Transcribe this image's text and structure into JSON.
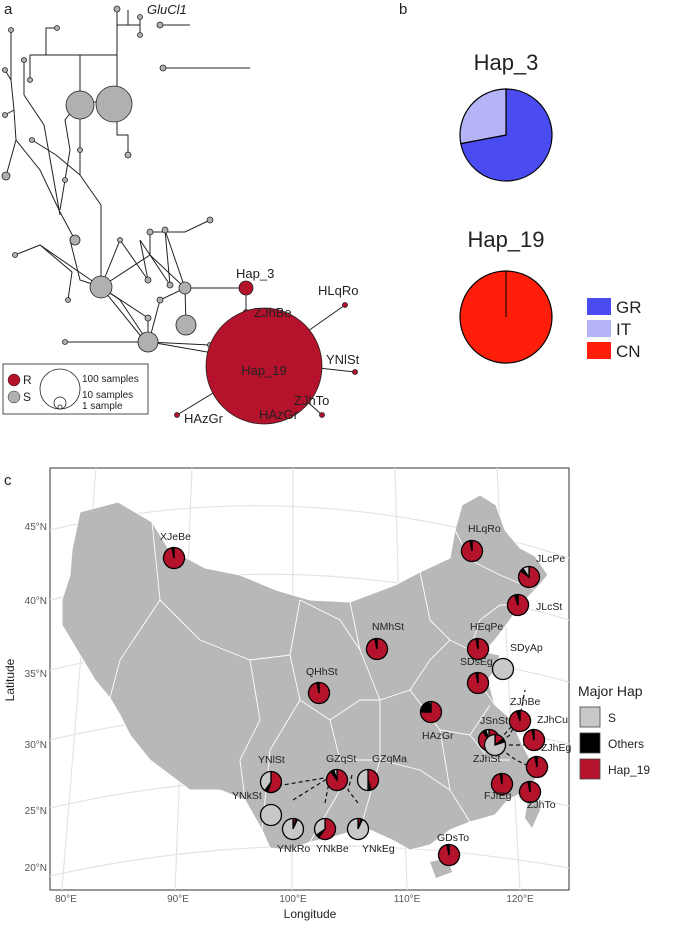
{
  "panels": {
    "a": "a",
    "b": "b",
    "c": "c"
  },
  "network": {
    "gene": "GluCl1",
    "haplotype_labels": [
      "Hap_3",
      "ZJhBe",
      "HLqRo",
      "Hap_19",
      "YNlSt",
      "ZJhTo",
      "HAzGr",
      "HAzGr"
    ],
    "legend": {
      "resistant": "R",
      "susceptible": "S",
      "sizes": [
        "100 samples",
        "10 samples",
        "1 sample"
      ]
    },
    "colors": {
      "R": "#b5122b",
      "S": "#b0b0b0"
    }
  },
  "chart_data": [
    {
      "type": "pie",
      "title": "Hap_3",
      "categories": [
        "GR",
        "IT",
        "CN"
      ],
      "values": [
        0.72,
        0.28,
        0.0
      ],
      "colors": [
        "#4b4bf2",
        "#b4b4f7",
        "#ff1e0a"
      ]
    },
    {
      "type": "pie",
      "title": "Hap_19",
      "categories": [
        "GR",
        "IT",
        "CN"
      ],
      "values": [
        0.0,
        0.0,
        1.0
      ],
      "colors": [
        "#4b4bf2",
        "#b4b4f7",
        "#ff1e0a"
      ]
    },
    {
      "type": "map-pies",
      "xlabel": "Longitude",
      "ylabel": "Latitude",
      "x_ticks": [
        "80°E",
        "90°E",
        "100°E",
        "110°E",
        "120°E"
      ],
      "y_ticks": [
        "20°N",
        "25°N",
        "30°N",
        "35°N",
        "40°N",
        "45°N"
      ],
      "legend": {
        "title": "Major Hap",
        "entries": [
          "S",
          "Others",
          "Hap_19"
        ],
        "colors": [
          "#c8c8c8",
          "#000000",
          "#b5122b"
        ]
      },
      "sites": [
        {
          "name": "XJeBe",
          "hap19": 0.97,
          "others": 0.03,
          "s": 0.0
        },
        {
          "name": "HLqRo",
          "hap19": 0.97,
          "others": 0.03,
          "s": 0.0
        },
        {
          "name": "JLcPe",
          "hap19": 0.85,
          "others": 0.05,
          "s": 0.1
        },
        {
          "name": "JLcSt",
          "hap19": 0.95,
          "others": 0.05,
          "s": 0.0
        },
        {
          "name": "NMhSt",
          "hap19": 0.97,
          "others": 0.03,
          "s": 0.0
        },
        {
          "name": "HEqPe",
          "hap19": 0.97,
          "others": 0.03,
          "s": 0.0
        },
        {
          "name": "SDyAp",
          "hap19": 0.0,
          "others": 0.0,
          "s": 1.0
        },
        {
          "name": "SDsEg",
          "hap19": 0.97,
          "others": 0.03,
          "s": 0.0
        },
        {
          "name": "QHhSt",
          "hap19": 0.97,
          "others": 0.03,
          "s": 0.0
        },
        {
          "name": "HAzGr",
          "hap19": 0.75,
          "others": 0.22,
          "s": 0.03
        },
        {
          "name": "ZJhBe",
          "hap19": 0.95,
          "others": 0.05,
          "s": 0.0
        },
        {
          "name": "JSnSt",
          "hap19": 0.9,
          "others": 0.05,
          "s": 0.05
        },
        {
          "name": "ZJhCu",
          "hap19": 0.97,
          "others": 0.03,
          "s": 0.0
        },
        {
          "name": "ZJhSt",
          "hap19": 0.15,
          "others": 0.05,
          "s": 0.8
        },
        {
          "name": "ZJhEg",
          "hap19": 0.97,
          "others": 0.03,
          "s": 0.0
        },
        {
          "name": "YNlSt",
          "hap19": 0.55,
          "others": 0.05,
          "s": 0.4
        },
        {
          "name": "GZqSt",
          "hap19": 0.9,
          "others": 0.05,
          "s": 0.05
        },
        {
          "name": "GZqMa",
          "hap19": 0.45,
          "others": 0.05,
          "s": 0.5
        },
        {
          "name": "FJfEg",
          "hap19": 0.97,
          "others": 0.03,
          "s": 0.0
        },
        {
          "name": "ZJhTo",
          "hap19": 0.97,
          "others": 0.03,
          "s": 0.0
        },
        {
          "name": "YNkSt",
          "hap19": 0.0,
          "others": 0.0,
          "s": 1.0
        },
        {
          "name": "YNkRo",
          "hap19": 0.05,
          "others": 0.02,
          "s": 0.93
        },
        {
          "name": "YNkBe",
          "hap19": 0.6,
          "others": 0.05,
          "s": 0.35
        },
        {
          "name": "YNkEg",
          "hap19": 0.05,
          "others": 0.02,
          "s": 0.93
        },
        {
          "name": "GDsTo",
          "hap19": 0.97,
          "others": 0.03,
          "s": 0.0
        }
      ]
    }
  ]
}
